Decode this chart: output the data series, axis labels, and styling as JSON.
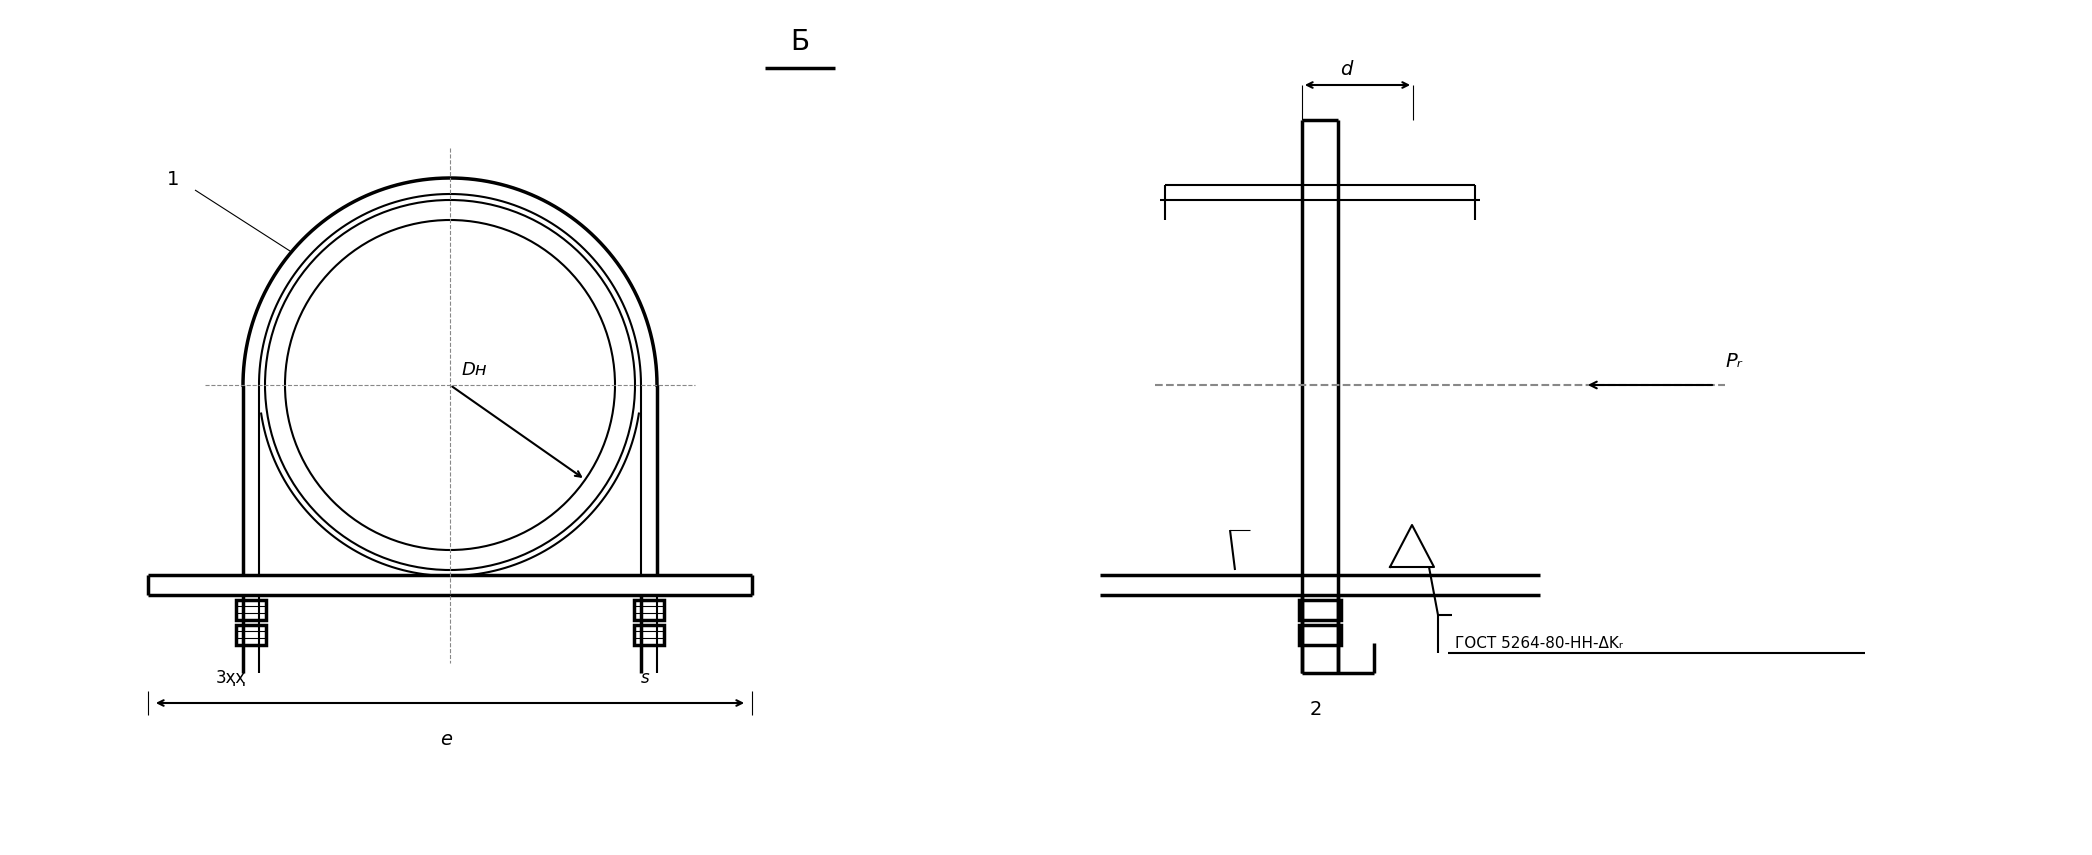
{
  "bg_color": "#ffffff",
  "line_color": "#000000",
  "fig_width": 20.92,
  "fig_height": 8.55,
  "title_text": "Б",
  "label_1": "1",
  "label_2": "2",
  "label_3xx": "3ҳҳ",
  "label_s": "ѕ",
  "label_e": "e",
  "label_Dn": "Dн",
  "label_d": "d",
  "label_Pz": "Pᵣ",
  "label_gost": "ГОСТ 5264-80-НН-ΔKᵣ",
  "lw": 1.5,
  "lw_thick": 2.5,
  "lw_thin": 0.8
}
